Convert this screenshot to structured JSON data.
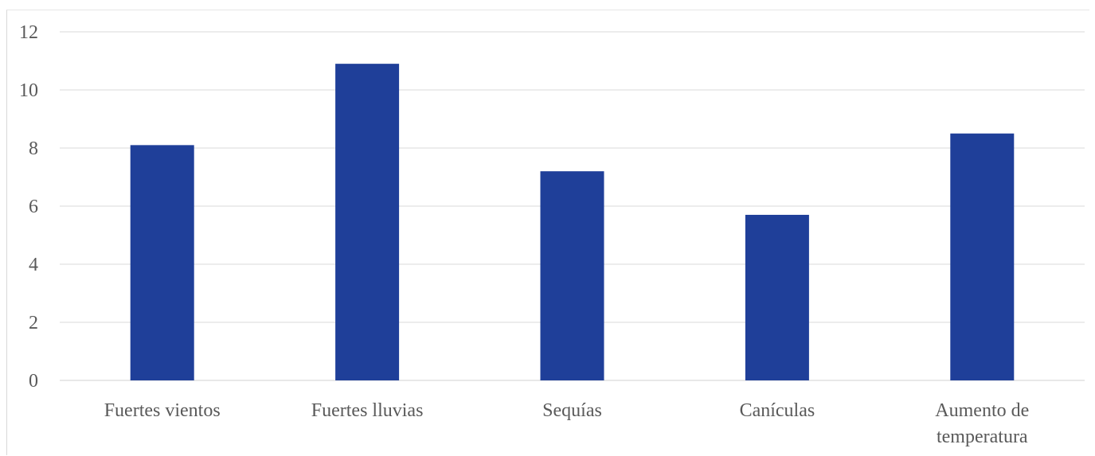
{
  "chart_data": {
    "type": "bar",
    "categories": [
      "Fuertes vientos",
      "Fuertes lluvias",
      "Sequías",
      "Canículas",
      "Aumento de temperatura"
    ],
    "category_lines": [
      [
        "Fuertes vientos"
      ],
      [
        "Fuertes lluvias"
      ],
      [
        "Sequías"
      ],
      [
        "Canículas"
      ],
      [
        "Aumento de",
        "temperatura"
      ]
    ],
    "values": [
      8.1,
      10.9,
      7.2,
      5.7,
      8.5
    ],
    "ylim": [
      0,
      12
    ],
    "yticks": [
      "0",
      "2",
      "4",
      "6",
      "8",
      "10",
      "12"
    ],
    "bar_color": "#1f3f99",
    "grid": true,
    "title": "",
    "xlabel": "",
    "ylabel": ""
  }
}
